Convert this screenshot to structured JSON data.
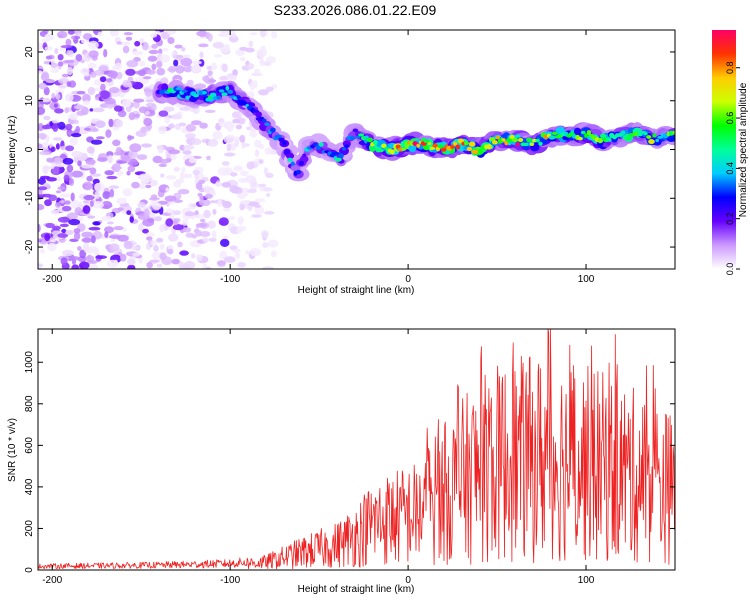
{
  "figure": {
    "title": "S233.2026.086.01.22.E09"
  },
  "chart_data": [
    {
      "type": "heatmap",
      "xlabel": "Height of straight line (km)",
      "ylabel": "Frequency (Hz)",
      "xlim": [
        -208,
        150
      ],
      "ylim": [
        -24.5,
        24.5
      ],
      "xticks": [
        -200,
        -100,
        0,
        100
      ],
      "yticks": [
        -20,
        -10,
        0,
        10,
        20
      ],
      "colorbar": {
        "label": "Normalized spectral amplitude",
        "range": [
          0,
          0.95
        ],
        "ticks": [
          0.0,
          0.2,
          0.4,
          0.6,
          0.8
        ],
        "colormap": [
          "#ffffff",
          "#cc99ff",
          "#6600ff",
          "#0000ff",
          "#00ccff",
          "#00ff99",
          "#00ff00",
          "#ccff00",
          "#ffcc00",
          "#ff3300",
          "#ff0066"
        ]
      },
      "ridge": {
        "x": [
          -140,
          -130,
          -120,
          -110,
          -100,
          -90,
          -80,
          -70,
          -62,
          -55,
          -45,
          -38,
          -30,
          -25,
          -20,
          -10,
          0,
          10,
          20,
          30,
          40,
          50,
          60,
          70,
          80,
          90,
          100,
          110,
          120,
          130,
          140,
          150
        ],
        "frequency": [
          12,
          12,
          11,
          11,
          12,
          9,
          5,
          1,
          -5,
          1,
          0,
          -2,
          4,
          2,
          1,
          0,
          1,
          1,
          0,
          1,
          0,
          2,
          2,
          1,
          3,
          3,
          3,
          2,
          3,
          3,
          2,
          3
        ],
        "amplitude": [
          0.3,
          0.45,
          0.4,
          0.5,
          0.45,
          0.35,
          0.35,
          0.3,
          0.3,
          0.3,
          0.35,
          0.35,
          0.3,
          0.5,
          0.6,
          0.7,
          0.8,
          0.75,
          0.8,
          0.8,
          0.75,
          0.7,
          0.65,
          0.6,
          0.6,
          0.55,
          0.6,
          0.6,
          0.5,
          0.6,
          0.5,
          0.5
        ]
      }
    },
    {
      "type": "line",
      "xlabel": "Height of straight line (km)",
      "ylabel": "SNR (10 * v/v)",
      "xlim": [
        -208,
        150
      ],
      "ylim": [
        0,
        1160
      ],
      "xticks": [
        -200,
        -100,
        0,
        100
      ],
      "yticks": [
        0,
        200,
        400,
        600,
        800,
        1000
      ],
      "series": [
        {
          "name": "SNR",
          "color": "#ee2222",
          "envelope_x": [
            -208,
            -150,
            -120,
            -100,
            -80,
            -60,
            -40,
            -30,
            -20,
            -10,
            0,
            10,
            20,
            30,
            40,
            50,
            60,
            70,
            80,
            90,
            100,
            110,
            120,
            130,
            140,
            150
          ],
          "envelope_y": [
            20,
            25,
            30,
            35,
            50,
            110,
            160,
            220,
            300,
            330,
            350,
            380,
            430,
            500,
            560,
            600,
            620,
            630,
            640,
            620,
            600,
            580,
            560,
            520,
            500,
            450
          ],
          "max_value": 1160
        }
      ]
    }
  ]
}
